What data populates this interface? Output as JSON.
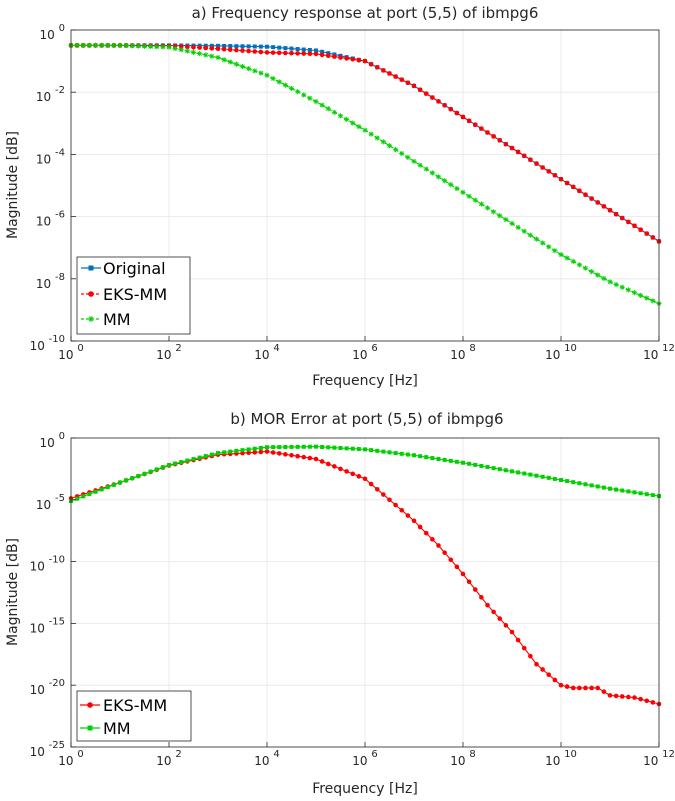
{
  "chart_data": [
    {
      "type": "line",
      "title": "a) Frequency response at port (5,5) of ibmpg6",
      "xlabel": "Frequency [Hz]",
      "ylabel": "Magnitude [dB]",
      "xscale": "log",
      "yscale": "log",
      "xlim": [
        1,
        1000000000000
      ],
      "ylim": [
        1e-10,
        1
      ],
      "xticks": [
        {
          "value": 1,
          "base": "10",
          "exp": "0"
        },
        {
          "value": 100,
          "base": "10",
          "exp": "2"
        },
        {
          "value": 10000,
          "base": "10",
          "exp": "4"
        },
        {
          "value": 1000000,
          "base": "10",
          "exp": "6"
        },
        {
          "value": 100000000,
          "base": "10",
          "exp": "8"
        },
        {
          "value": 10000000000,
          "base": "10",
          "exp": "10"
        },
        {
          "value": 1000000000000,
          "base": "10",
          "exp": "12"
        }
      ],
      "yticks": [
        {
          "value": 1,
          "base": "10",
          "exp": "0"
        },
        {
          "value": 0.01,
          "base": "10",
          "exp": "-2"
        },
        {
          "value": 0.0001,
          "base": "10",
          "exp": "-4"
        },
        {
          "value": 1e-06,
          "base": "10",
          "exp": "-6"
        },
        {
          "value": 1e-08,
          "base": "10",
          "exp": "-8"
        },
        {
          "value": 1e-10,
          "base": "10",
          "exp": "-10"
        }
      ],
      "grid": true,
      "legend_position": "bottom-left",
      "series": [
        {
          "name": "Original",
          "color": "#0072BD",
          "marker": "square",
          "line": "solid",
          "x": [
            1,
            10,
            100,
            1000,
            10000,
            100000,
            1000000,
            10000000,
            100000000,
            1000000000,
            10000000000,
            100000000000,
            1000000000000
          ],
          "y": [
            0.32,
            0.32,
            0.32,
            0.31,
            0.29,
            0.22,
            0.1,
            0.016,
            0.0016,
            0.00016,
            1.6e-05,
            1.6e-06,
            1.6e-07
          ]
        },
        {
          "name": "EKS-MM",
          "color": "#FF0000",
          "marker": "circle",
          "line": "dashed",
          "x": [
            1,
            10,
            100,
            1000,
            10000,
            100000,
            1000000,
            10000000,
            100000000,
            1000000000,
            10000000000,
            100000000000,
            1000000000000
          ],
          "y": [
            0.32,
            0.32,
            0.31,
            0.25,
            0.19,
            0.17,
            0.1,
            0.016,
            0.0016,
            0.00016,
            1.6e-05,
            1.6e-06,
            1.6e-07
          ]
        },
        {
          "name": "MM",
          "color": "#00D000",
          "marker": "star",
          "line": "dashed",
          "x": [
            1,
            10,
            100,
            1000,
            10000,
            100000,
            1000000,
            10000000,
            100000000,
            1000000000,
            10000000000,
            100000000000,
            1000000000000
          ],
          "y": [
            0.32,
            0.32,
            0.28,
            0.13,
            0.035,
            0.005,
            0.0006,
            6e-05,
            6e-06,
            6e-07,
            6e-08,
            8e-09,
            1.6e-09
          ]
        }
      ]
    },
    {
      "type": "line",
      "title": "b) MOR Error at port (5,5) of ibmpg6",
      "xlabel": "Frequency [Hz]",
      "ylabel": "Magnitude [dB]",
      "xscale": "log",
      "yscale": "log",
      "xlim": [
        1,
        1000000000000
      ],
      "ylim": [
        1e-25,
        1
      ],
      "xticks": [
        {
          "value": 1,
          "base": "10",
          "exp": "0"
        },
        {
          "value": 100,
          "base": "10",
          "exp": "2"
        },
        {
          "value": 10000,
          "base": "10",
          "exp": "4"
        },
        {
          "value": 1000000,
          "base": "10",
          "exp": "6"
        },
        {
          "value": 100000000,
          "base": "10",
          "exp": "8"
        },
        {
          "value": 10000000000,
          "base": "10",
          "exp": "10"
        },
        {
          "value": 1000000000000,
          "base": "10",
          "exp": "12"
        }
      ],
      "yticks": [
        {
          "value": 1,
          "base": "10",
          "exp": "0"
        },
        {
          "value": 1e-05,
          "base": "10",
          "exp": "-5"
        },
        {
          "value": 1e-10,
          "base": "10",
          "exp": "-10"
        },
        {
          "value": 1e-15,
          "base": "10",
          "exp": "-15"
        },
        {
          "value": 1e-20,
          "base": "10",
          "exp": "-20"
        },
        {
          "value": 1e-25,
          "base": "10",
          "exp": "-25"
        }
      ],
      "grid": true,
      "legend_position": "bottom-left",
      "series": [
        {
          "name": "EKS-MM",
          "color": "#FF0000",
          "marker": "circle",
          "line": "solid",
          "x": [
            1,
            10,
            100,
            1000,
            10000,
            100000,
            1000000,
            10000000,
            31600000,
            100000000,
            316000000,
            1000000000,
            3160000000,
            10000000000,
            17800000000,
            31600000000,
            56200000000,
            100000000000,
            316000000000,
            1000000000000
          ],
          "y": [
            1.3e-05,
            0.00025,
            0.006,
            0.045,
            0.08,
            0.02,
            0.0005,
            2e-07,
            2e-09,
            1e-11,
            3e-14,
            2e-16,
            5e-19,
            1e-20,
            6e-21,
            6e-21,
            6e-21,
            1.5e-21,
            1e-21,
            3e-22
          ]
        },
        {
          "name": "MM",
          "color": "#00D000",
          "marker": "square",
          "line": "solid",
          "x": [
            1,
            10,
            100,
            1000,
            10000,
            100000,
            1000000,
            10000000,
            100000000,
            1000000000,
            10000000000,
            100000000000,
            1000000000000
          ],
          "y": [
            8e-06,
            0.00025,
            0.0065,
            0.06,
            0.18,
            0.2,
            0.12,
            0.04,
            0.01,
            0.002,
            0.0004,
            8e-05,
            2e-05
          ]
        }
      ]
    }
  ]
}
